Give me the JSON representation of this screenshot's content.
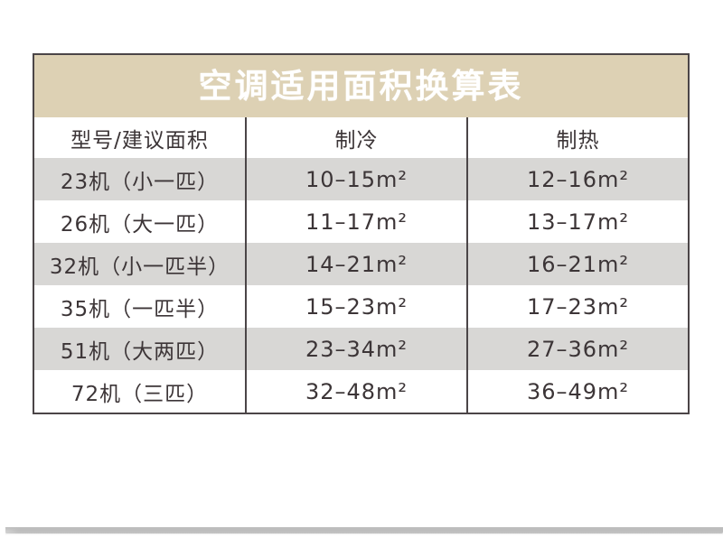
{
  "chart_data": {
    "type": "table",
    "title": "空调适用面积换算表",
    "columns": [
      "型号/建议面积",
      "制冷",
      "制热"
    ],
    "rows": [
      [
        "23机（小一匹）",
        "10–15m²",
        "12–16m²"
      ],
      [
        "26机（大一匹）",
        "11–17m²",
        "13–17m²"
      ],
      [
        "32机（小一匹半）",
        "14–21m²",
        "16–21m²"
      ],
      [
        "35机（一匹半）",
        "15–23m²",
        "17–23m²"
      ],
      [
        "51机（大两匹）",
        "23–34m²",
        "27–36m²"
      ],
      [
        "72机（三匹）",
        "32–48m²",
        "36–49m²"
      ]
    ],
    "layout": {
      "title_position": "top-center",
      "alternating_rows": true,
      "alt_row_indices": [
        0,
        2,
        4
      ]
    }
  },
  "colors": {
    "title_bg": "#ddd1b4",
    "title_text": "#ffffff",
    "row_alt_bg": "#d8d7d5",
    "row_bg": "#ffffff",
    "border": "#4b4547",
    "text": "#3c3537",
    "shadow": "#bdbdbd"
  }
}
